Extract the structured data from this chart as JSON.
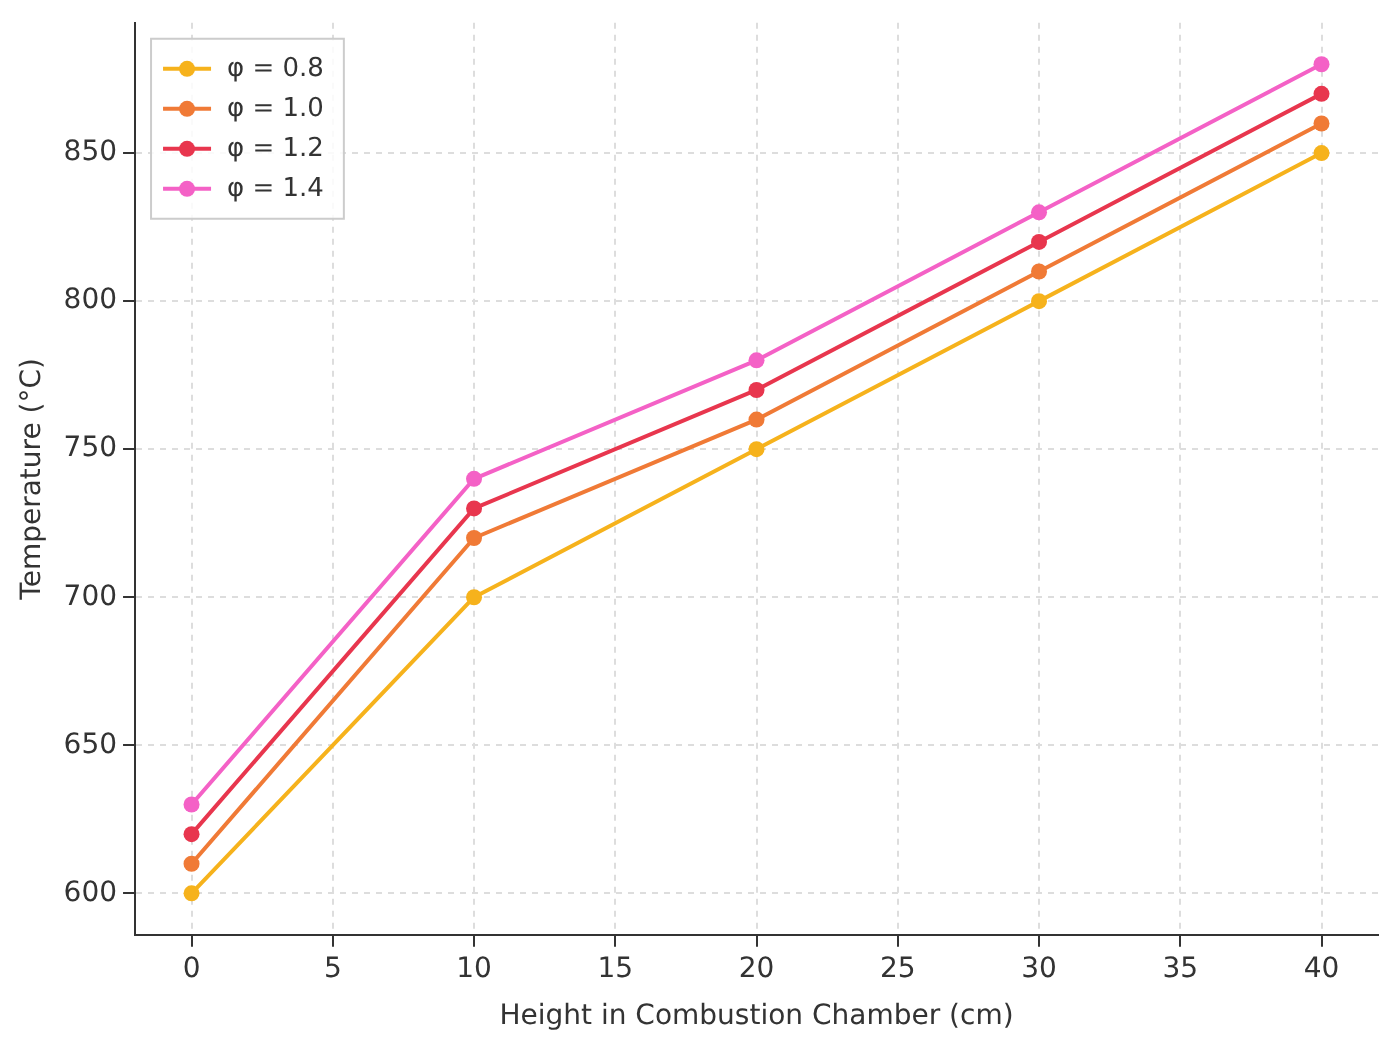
{
  "chart_data": {
    "type": "line",
    "xlabel": "Height in Combustion Chamber (cm)",
    "ylabel": "Temperature (°C)",
    "x": [
      0,
      10,
      20,
      30,
      40
    ],
    "series": [
      {
        "name": "φ = 0.8",
        "color": "#f6b21c",
        "values": [
          600,
          700,
          750,
          800,
          850
        ]
      },
      {
        "name": "φ = 1.0",
        "color": "#f07a36",
        "values": [
          610,
          720,
          760,
          810,
          860
        ]
      },
      {
        "name": "φ = 1.2",
        "color": "#e8364e",
        "values": [
          620,
          730,
          770,
          820,
          870
        ]
      },
      {
        "name": "φ = 1.4",
        "color": "#f461c6",
        "values": [
          630,
          740,
          780,
          830,
          880
        ]
      }
    ],
    "xlim": [
      -2,
      42
    ],
    "ylim": [
      586,
      894
    ],
    "xticks": [
      0,
      5,
      10,
      15,
      20,
      25,
      30,
      35,
      40
    ],
    "yticks": [
      600,
      650,
      700,
      750,
      800,
      850
    ],
    "grid": true,
    "legend": "top left",
    "marker": "circle",
    "line_style": "solid"
  }
}
